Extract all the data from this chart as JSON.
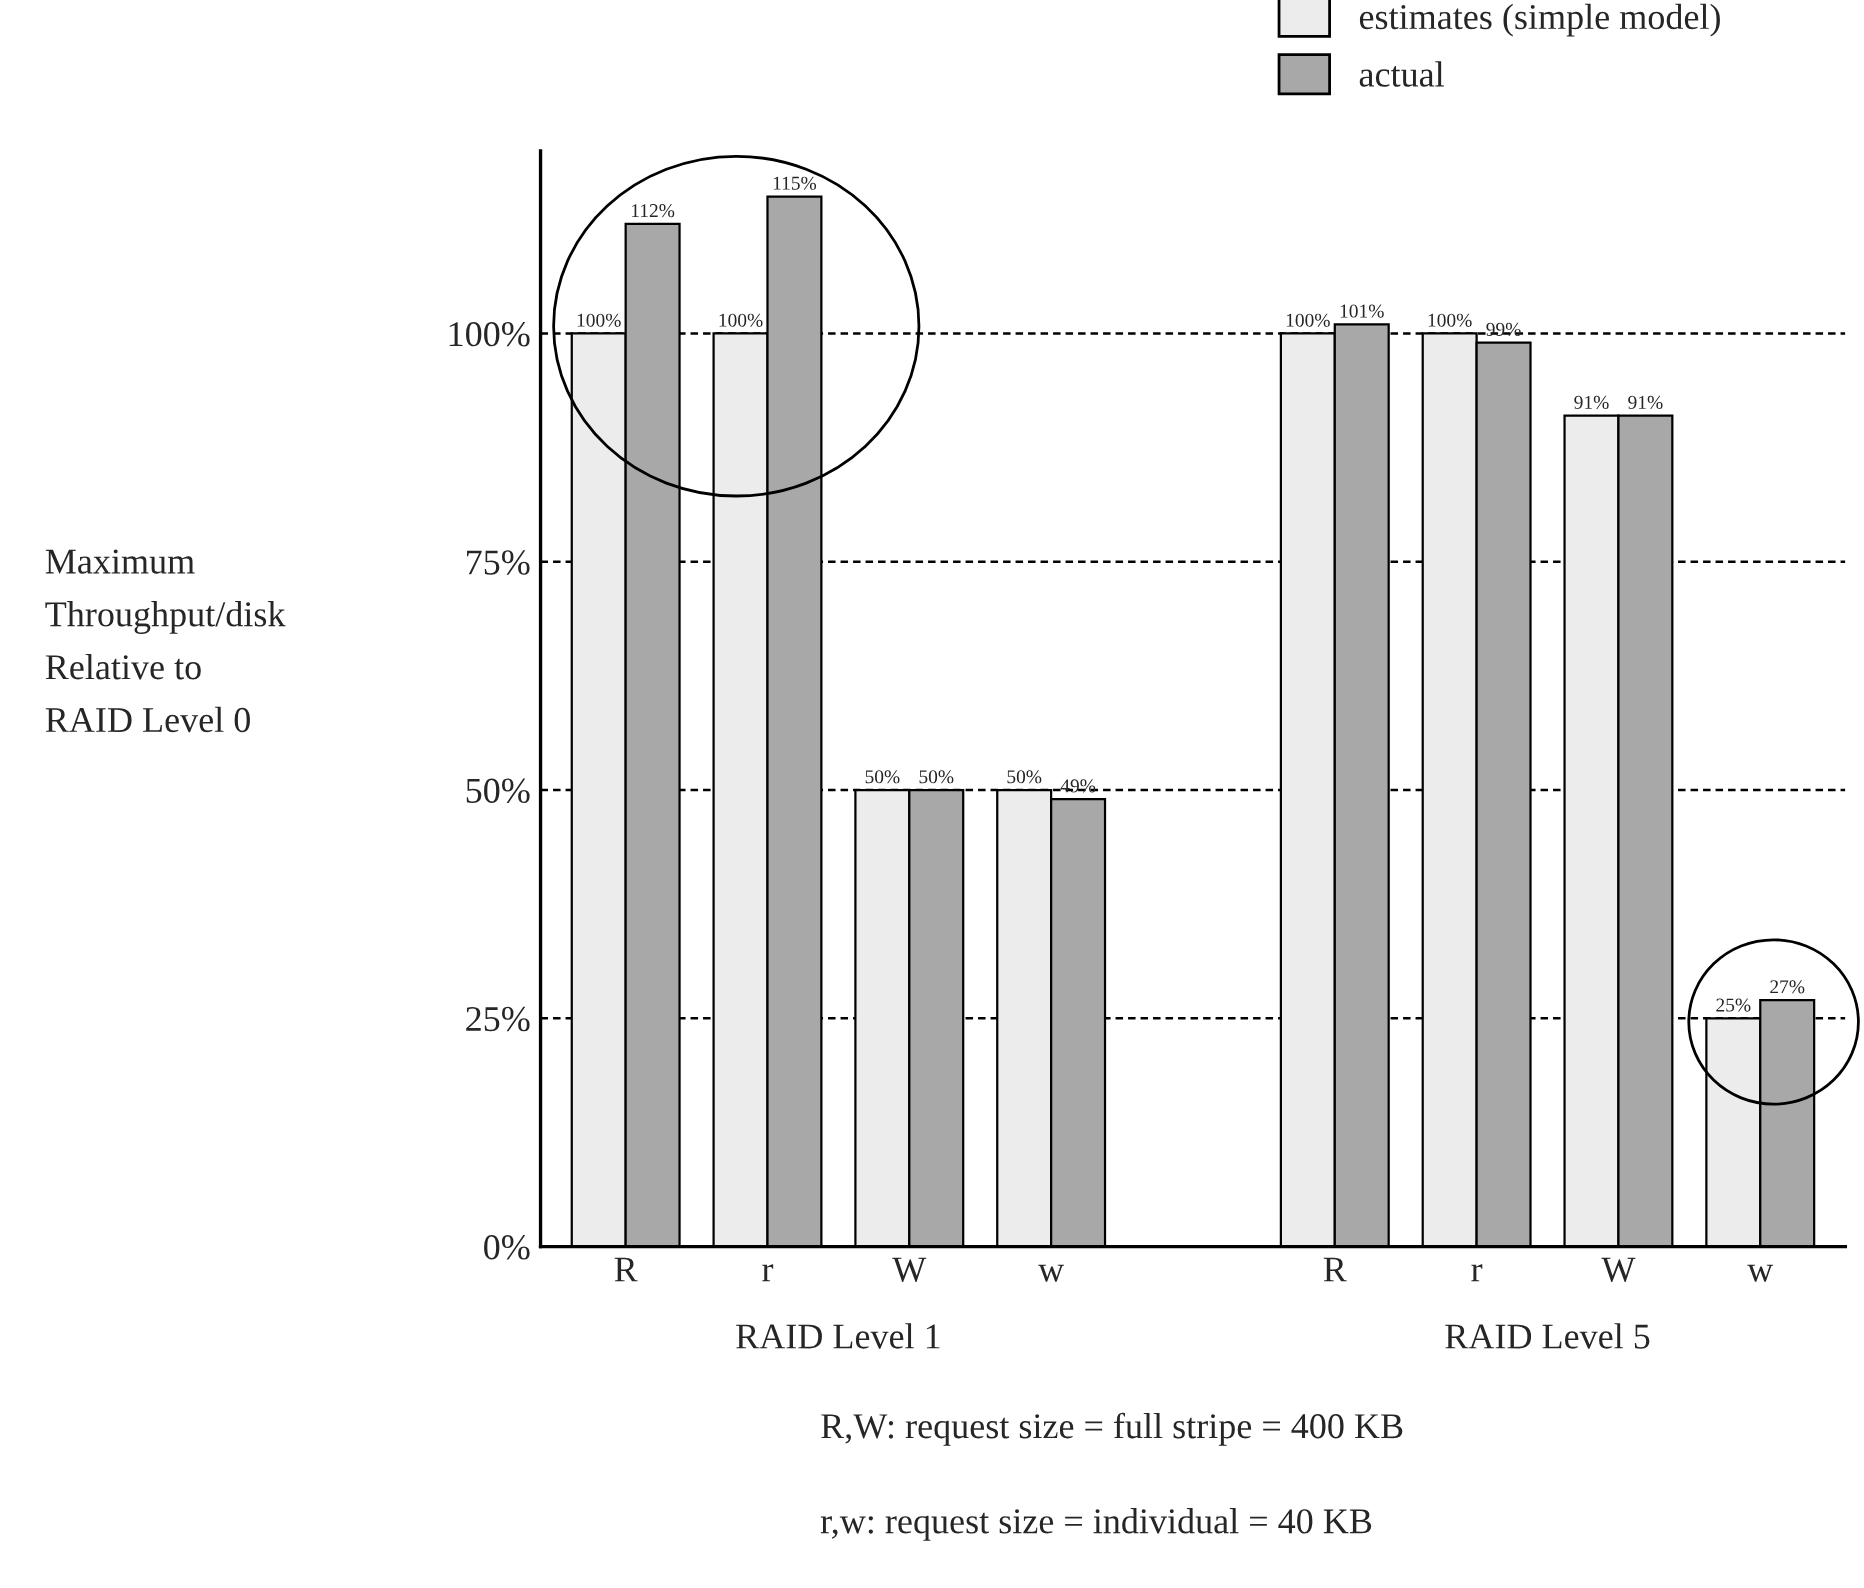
{
  "chart_data": {
    "type": "bar",
    "categories": [
      "R",
      "r",
      "W",
      "w",
      null,
      "R",
      "r",
      "W",
      "w"
    ],
    "series": [
      {
        "name": "estimates (simple model)",
        "color": "#ececec",
        "values": [
          100,
          100,
          50,
          50,
          null,
          100,
          100,
          91,
          25
        ],
        "value_labels": [
          "100%",
          "100%",
          "50%",
          "50%",
          null,
          "100%",
          "100%",
          "91%",
          "25%"
        ]
      },
      {
        "name": "actual",
        "color": "#a8a8a8",
        "values": [
          112,
          115,
          50,
          49,
          null,
          101,
          99,
          91,
          27
        ],
        "value_labels": [
          "112%",
          "115%",
          "50%",
          "49%",
          null,
          "101%",
          "99%",
          "91%",
          "27%"
        ]
      }
    ],
    "ylabel": "Maximum\nThroughput/disk\nRelative to\nRAID Level 0",
    "ylim": [
      0,
      120
    ],
    "yticks": [
      {
        "value": 0,
        "label": "0%"
      },
      {
        "value": 25,
        "label": "25%"
      },
      {
        "value": 50,
        "label": "50%"
      },
      {
        "value": 75,
        "label": "75%"
      },
      {
        "value": 100,
        "label": "100%"
      }
    ],
    "grid": "y",
    "legend": "top right",
    "annotations": [
      "RAID Level 1",
      "RAID Level 5",
      "R,W: request size = full stripe = 400 KB",
      "r,w: request size = individual = 40 KB"
    ]
  }
}
